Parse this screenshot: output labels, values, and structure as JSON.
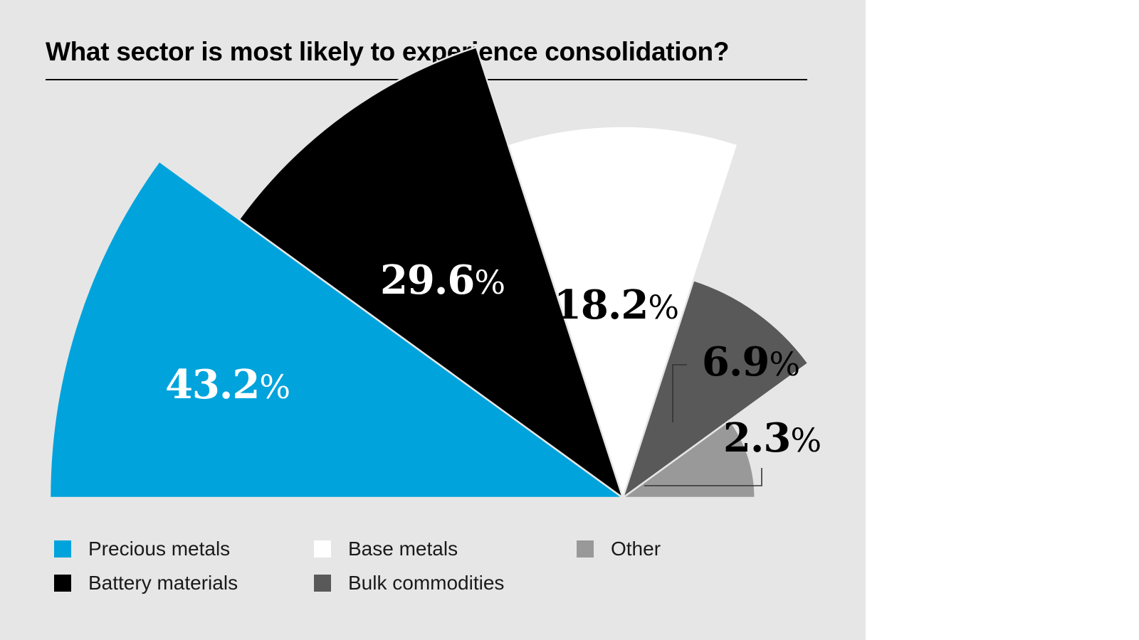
{
  "title": "What sector is most likely to experience consolidation?",
  "chart_data": {
    "type": "pie",
    "subtype": "rose-semicircle",
    "title": "What sector is most likely to experience consolidation?",
    "unit": "%",
    "slices": [
      {
        "name": "Precious metals",
        "value": 43.2,
        "label": "43.2",
        "color": "#00a3dc",
        "label_color": "#ffffff"
      },
      {
        "name": "Battery materials",
        "value": 29.6,
        "label": "29.6",
        "color": "#000000",
        "label_color": "#ffffff"
      },
      {
        "name": "Base metals",
        "value": 18.2,
        "label": "18.2",
        "color": "#ffffff",
        "label_color": "#000000"
      },
      {
        "name": "Bulk commodities",
        "value": 6.9,
        "label": "6.9",
        "color": "#595959",
        "label_color": "#000000"
      },
      {
        "name": "Other",
        "value": 2.3,
        "label": "2.3",
        "color": "#999999",
        "label_color": "#000000"
      }
    ],
    "percent_sign": "%",
    "legend_position": "bottom"
  },
  "legend": {
    "items": [
      {
        "label": "Precious metals",
        "color": "#00a3dc"
      },
      {
        "label": "Battery materials",
        "color": "#000000"
      },
      {
        "label": "Base metals",
        "color": "#ffffff"
      },
      {
        "label": "Bulk commodities",
        "color": "#595959"
      },
      {
        "label": "Other",
        "color": "#999999"
      }
    ]
  }
}
